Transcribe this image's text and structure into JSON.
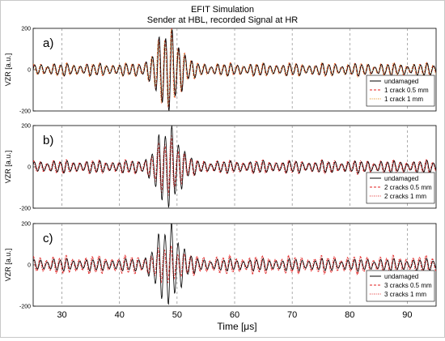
{
  "chart_data": {
    "type": "line",
    "title": "EFIT Simulation",
    "subtitle": "Sender at HBL, recorded Signal at HR",
    "xlabel": "Time [μs]",
    "xlim": [
      25,
      95
    ],
    "x_ticks": [
      "30",
      "40",
      "50",
      "60",
      "70",
      "80",
      "90"
    ],
    "panels": [
      {
        "label": "a)",
        "ylabel": "VZR [a.u.]",
        "ylim": [
          -200,
          200
        ],
        "y_ticks": [
          "200",
          "0",
          "-200"
        ],
        "series": [
          {
            "name": "undamaged",
            "color": "#000000",
            "style": "solid",
            "burst_peak": 190
          },
          {
            "name": "1 crack 0.5 mm",
            "color": "#e02020",
            "style": "dashed",
            "burst_peak": 185
          },
          {
            "name": "1 crack 1 mm",
            "color": "#e08000",
            "style": "dotted",
            "burst_peak": 175
          }
        ]
      },
      {
        "label": "b)",
        "ylabel": "VZR [a.u.]",
        "ylim": [
          -200,
          200
        ],
        "y_ticks": [
          "200",
          "0",
          "-200"
        ],
        "series": [
          {
            "name": "undamaged",
            "color": "#000000",
            "style": "solid",
            "burst_peak": 190
          },
          {
            "name": "2 cracks 0.5 mm",
            "color": "#e02020",
            "style": "dashed",
            "burst_peak": 130
          },
          {
            "name": "2 cracks 1  mm",
            "color": "#e02020",
            "style": "dotted",
            "burst_peak": 110
          }
        ]
      },
      {
        "label": "c)",
        "ylabel": "VZR [a.u.]",
        "ylim": [
          -200,
          200
        ],
        "y_ticks": [
          "200",
          "0",
          "-200"
        ],
        "series": [
          {
            "name": "undamaged",
            "color": "#000000",
            "style": "solid",
            "burst_peak": 190
          },
          {
            "name": "3 cracks 0.5 mm",
            "color": "#e02020",
            "style": "dashed",
            "burst_peak": 60
          },
          {
            "name": "3 cracks 1 mm",
            "color": "#e02020",
            "style": "dotted",
            "burst_peak": 50
          }
        ]
      }
    ],
    "grid": "vertical dashed"
  }
}
